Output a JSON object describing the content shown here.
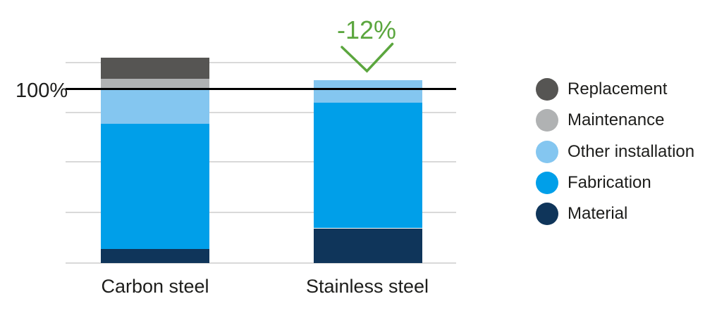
{
  "colors": {
    "replacement": "#565553",
    "maintenance": "#b0b2b3",
    "other_installation": "#84c6f0",
    "fabrication": "#009fe9",
    "material": "#0f355a",
    "annotation_green": "#5ba63e",
    "gridline": "#d9d9d9",
    "reference_line": "#000000",
    "text": "#1d1d1b"
  },
  "chart_data": {
    "type": "bar",
    "subtype": "stacked-vertical",
    "title": "",
    "xlabel": "",
    "ylabel": "",
    "unit": "percent",
    "categories": [
      "Carbon steel",
      "Stainless steel"
    ],
    "series": [
      {
        "name": "Material",
        "color_key": "material",
        "values": [
          8,
          20
        ]
      },
      {
        "name": "Fabrication",
        "color_key": "fabrication",
        "values": [
          72,
          72
        ]
      },
      {
        "name": "Other installation",
        "color_key": "other_installation",
        "values": [
          20,
          13
        ]
      },
      {
        "name": "Maintenance",
        "color_key": "maintenance",
        "values": [
          6,
          0
        ]
      },
      {
        "name": "Replacement",
        "color_key": "replacement",
        "values": [
          12,
          0
        ]
      }
    ],
    "totals_percent": [
      118,
      105
    ],
    "reference_line": {
      "label": "100%",
      "value_percent": 100
    },
    "annotation": {
      "text": "-12%",
      "applies_to": "Stainless steel"
    },
    "legend": {
      "position": "right",
      "items": [
        {
          "label": "Replacement",
          "color_key": "replacement"
        },
        {
          "label": "Maintenance",
          "color_key": "maintenance"
        },
        {
          "label": "Other installation",
          "color_key": "other_installation"
        },
        {
          "label": "Fabrication",
          "color_key": "fabrication"
        },
        {
          "label": "Material",
          "color_key": "material"
        }
      ]
    },
    "layout": {
      "grid": true,
      "gridline_values_percent": [
        0,
        29,
        58,
        86.5,
        115.2
      ],
      "ylim_percent": [
        0,
        123
      ]
    }
  }
}
